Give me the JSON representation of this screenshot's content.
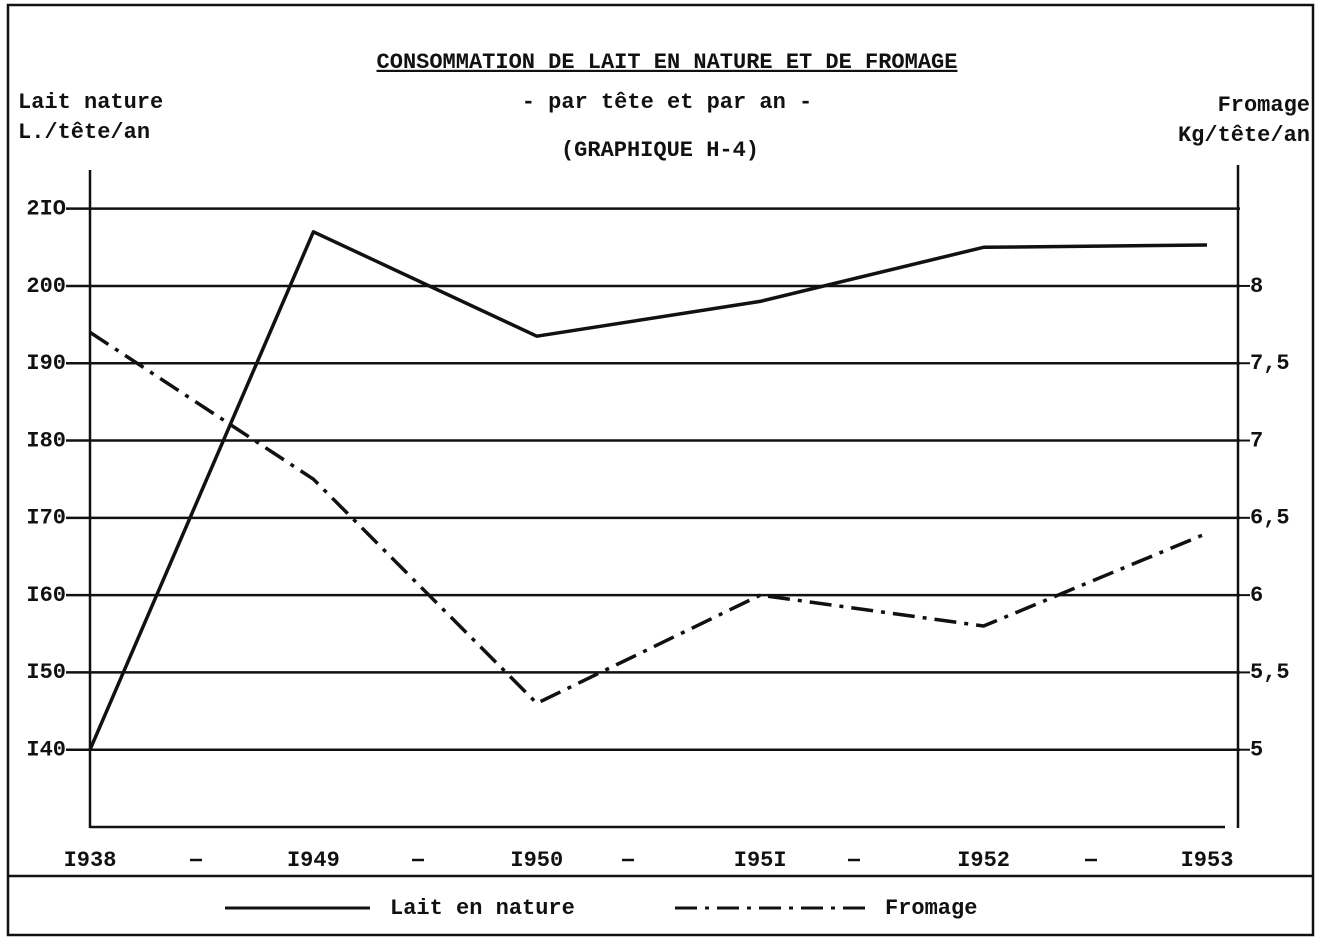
{
  "chart_data": {
    "type": "line",
    "title": "CONSOMMATION DE LAIT EN NATURE ET DE FROMAGE",
    "subtitle": "- par tête et par an -",
    "caption": "(GRAPHIQUE H-4)",
    "y_label": [
      "Lait nature",
      "L./tête/an"
    ],
    "y2_label": [
      "Fromage",
      "Kg/tête/an"
    ],
    "categories": [
      "I938",
      "I949",
      "I950",
      "I95I",
      "I952",
      "I953"
    ],
    "series": [
      {
        "name": "Lait en nature",
        "color": "#111111",
        "values": [
          140,
          207,
          193.5,
          198,
          205,
          205.3
        ]
      },
      {
        "name": "Fromage",
        "color": "#111111",
        "axis": "y2",
        "values": [
          7.7,
          6.75,
          5.3,
          6.0,
          5.8,
          6.4
        ]
      }
    ],
    "ylim": [
      130,
      215
    ],
    "yticks": [
      {
        "value": 140,
        "label": "I40"
      },
      {
        "value": 150,
        "label": "I50"
      },
      {
        "value": 160,
        "label": "I60"
      },
      {
        "value": 170,
        "label": "I70"
      },
      {
        "value": 180,
        "label": "I80"
      },
      {
        "value": 190,
        "label": "I90"
      },
      200,
      {
        "value": 210,
        "label": "2IO"
      }
    ],
    "y2lim": [
      4.5,
      8.75
    ],
    "y2ticks": [
      5,
      {
        "value": 5.5,
        "label": "5,5"
      },
      6,
      {
        "value": 6.5,
        "label": "6,5"
      },
      7,
      {
        "value": 7.5,
        "label": "7,5"
      },
      8
    ],
    "grid": true
  }
}
